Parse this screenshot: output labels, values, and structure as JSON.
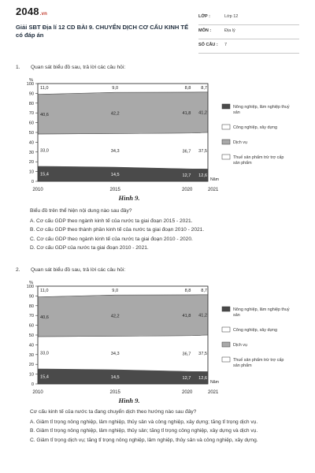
{
  "site": {
    "logo": "2048",
    "logo_sub": ".vn"
  },
  "title": "Giải SBT Địa lí 12 CD BÀI 9. CHUYỂN DỊCH CƠ CẤU KINH TẾ có đáp án",
  "meta": [
    {
      "label": "LỚP :",
      "value": "Lớp 12"
    },
    {
      "label": "MÔN :",
      "value": "Địa lý"
    },
    {
      "label": "SỐ CÂU :",
      "value": "7"
    }
  ],
  "questions": [
    {
      "number": "1.",
      "prompt": "Quan sát biểu đồ sau, trả lời các câu hỏi:",
      "stem": "Biểu đồ trên thể hiện nội dung nào sau đây?",
      "options": [
        "A. Cơ cấu GDP theo ngành kinh tế của nước ta giai đoạn 2015 - 2021.",
        "B. Cơ cấu GDP theo thành phần kinh tế của nước ta giai đoạn 2010 - 2021.",
        "C. Cơ cấu GDP theo ngành kinh tế của nước ta giai đoạn 2010 - 2020.",
        "D. Cơ cấu GDP của nước ta giai đoạn 2010 - 2021."
      ]
    },
    {
      "number": "2.",
      "prompt": "Quan sát biểu đồ sau, trả lời các câu hỏi:",
      "stem": "Cơ cấu kinh tế của nước ta đang chuyển dịch theo hướng nào sau đây?",
      "options": [
        "A. Giảm tỉ trọng nông nghiệp, lâm nghiệp, thủy sản và công nghiệp, xây dựng; tăng tỉ trọng dịch vụ.",
        "B. Giảm tỉ trọng nông nghiệp, lâm nghiệp, thủy sản; tăng tỉ trọng công nghiệp, xây dựng và dịch vụ.",
        "C. Giảm tỉ trọng dịch vụ; tăng tỉ trọng nông nghiệp, lâm nghiệp, thủy sản và công nghiệp, xây dựng."
      ]
    }
  ],
  "chart_data": [
    {
      "type": "area",
      "title": "Hình 9.",
      "ylabel": "%",
      "xlabel": "Năm",
      "ylim": [
        0,
        100
      ],
      "yticks": [
        0,
        10,
        20,
        30,
        40,
        50,
        60,
        70,
        80,
        90,
        100
      ],
      "x": [
        2010,
        2015,
        2020,
        2021
      ],
      "series": [
        {
          "name": "Nông nghiệp, lâm nghiệp thuỷ sản",
          "values": [
            15.4,
            14.5,
            12.7,
            12.6
          ],
          "color": "#4a4a4a"
        },
        {
          "name": "Công nghiệp, xây dựng",
          "values": [
            33.0,
            34.3,
            36.7,
            37.5
          ],
          "color": "#ffffff"
        },
        {
          "name": "Dịch vụ",
          "values": [
            40.6,
            42.2,
            41.8,
            41.2
          ],
          "color": "#a9a9a9"
        },
        {
          "name": "Thuế sản phẩm trừ trợ cấp sản phẩm",
          "values": [
            11.0,
            9.0,
            8.8,
            8.7
          ],
          "color": "#ffffff"
        }
      ],
      "legend_position": "right"
    },
    {
      "type": "area",
      "title": "Hình 9.",
      "ylabel": "%",
      "xlabel": "Năm",
      "ylim": [
        0,
        100
      ],
      "yticks": [
        0,
        10,
        20,
        30,
        40,
        50,
        60,
        70,
        80,
        90,
        100
      ],
      "x": [
        2010,
        2015,
        2020,
        2021
      ],
      "series": [
        {
          "name": "Nông nghiệp, lâm nghiệp thuỷ sản",
          "values": [
            15.4,
            14.5,
            12.7,
            12.6
          ],
          "color": "#4a4a4a"
        },
        {
          "name": "Công nghiệp, xây dựng",
          "values": [
            33.0,
            34.3,
            36.7,
            37.5
          ],
          "color": "#ffffff"
        },
        {
          "name": "Dịch vụ",
          "values": [
            40.6,
            42.2,
            41.8,
            41.2
          ],
          "color": "#a9a9a9"
        },
        {
          "name": "Thuế sản phẩm trừ trợ cấp sản phẩm",
          "values": [
            11.0,
            9.0,
            8.8,
            8.7
          ],
          "color": "#ffffff"
        }
      ],
      "legend_position": "right"
    }
  ]
}
